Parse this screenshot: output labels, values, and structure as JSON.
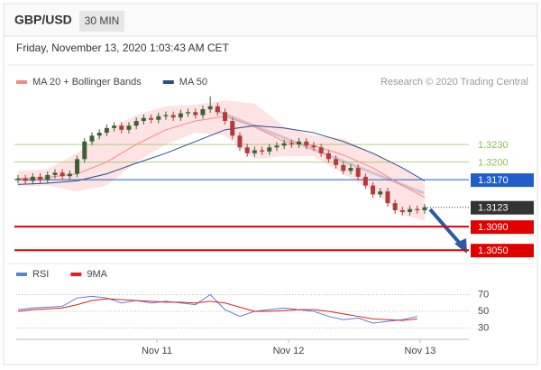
{
  "chart_data": {
    "type": "candlestick",
    "title": "GBP/USD",
    "timeframe": "30 MIN",
    "subtitle": "Friday, November 13, 2020 1:03:43 AM CET",
    "source": "Research © 2020 Trading Central",
    "up_color": "#3f5f36",
    "down_color": "#b23a3a",
    "x": [
      0,
      1,
      2,
      3,
      4,
      5,
      6,
      7,
      8,
      9,
      10,
      11,
      12,
      13,
      14,
      15,
      16,
      17,
      18,
      19,
      20,
      21,
      22,
      23,
      24,
      25,
      26,
      27,
      28,
      29,
      30,
      31,
      32,
      33,
      34,
      35,
      36,
      37,
      38,
      39,
      40,
      41,
      42,
      43,
      44,
      45,
      46,
      47,
      48,
      49,
      50,
      51,
      52,
      53,
      54,
      55
    ],
    "open": [
      1.317,
      1.3172,
      1.3168,
      1.3175,
      1.317,
      1.3178,
      1.3182,
      1.3176,
      1.318,
      1.3205,
      1.3235,
      1.3245,
      1.325,
      1.3258,
      1.3262,
      1.3255,
      1.3262,
      1.327,
      1.3275,
      1.3272,
      1.3278,
      1.328,
      1.3276,
      1.3283,
      1.3285,
      1.328,
      1.329,
      1.3295,
      1.3285,
      1.327,
      1.3245,
      1.3225,
      1.3215,
      1.322,
      1.3218,
      1.3225,
      1.3228,
      1.3232,
      1.323,
      1.3235,
      1.3228,
      1.3225,
      1.3215,
      1.3205,
      1.3195,
      1.3185,
      1.319,
      1.3175,
      1.316,
      1.3145,
      1.315,
      1.313,
      1.3118,
      1.3115,
      1.312,
      1.3118
    ],
    "high": [
      1.3178,
      1.3178,
      1.3181,
      1.3181,
      1.3184,
      1.3188,
      1.3188,
      1.3186,
      1.3211,
      1.3241,
      1.3251,
      1.3256,
      1.3264,
      1.3268,
      1.3268,
      1.3268,
      1.3276,
      1.3281,
      1.3281,
      1.3284,
      1.3286,
      1.3286,
      1.3289,
      1.3291,
      1.3291,
      1.3296,
      1.3312,
      1.3301,
      1.3291,
      1.3276,
      1.3251,
      1.3231,
      1.3226,
      1.3226,
      1.3231,
      1.3234,
      1.3238,
      1.3238,
      1.3241,
      1.3241,
      1.3234,
      1.3231,
      1.3221,
      1.3211,
      1.3201,
      1.3196,
      1.3196,
      1.3181,
      1.3166,
      1.3156,
      1.3156,
      1.3136,
      1.3124,
      1.3126,
      1.3126,
      1.3129
    ],
    "low": [
      1.3164,
      1.3162,
      1.3162,
      1.3164,
      1.3164,
      1.3172,
      1.317,
      1.317,
      1.3174,
      1.3199,
      1.3229,
      1.3239,
      1.3244,
      1.3252,
      1.3249,
      1.3249,
      1.3256,
      1.3264,
      1.3266,
      1.3266,
      1.3272,
      1.327,
      1.327,
      1.3277,
      1.3274,
      1.3274,
      1.3284,
      1.3279,
      1.3264,
      1.3239,
      1.3219,
      1.3209,
      1.3209,
      1.3212,
      1.3212,
      1.3219,
      1.3222,
      1.3224,
      1.3224,
      1.3222,
      1.3219,
      1.3209,
      1.3199,
      1.3189,
      1.3179,
      1.3179,
      1.3169,
      1.3154,
      1.3139,
      1.3139,
      1.3124,
      1.3112,
      1.3109,
      1.3109,
      1.3112,
      1.3112
    ],
    "close": [
      1.3172,
      1.3168,
      1.3175,
      1.317,
      1.3178,
      1.3182,
      1.3176,
      1.318,
      1.3205,
      1.3235,
      1.3245,
      1.325,
      1.3258,
      1.3262,
      1.3255,
      1.3262,
      1.327,
      1.3275,
      1.3272,
      1.3278,
      1.328,
      1.3276,
      1.3283,
      1.3285,
      1.328,
      1.329,
      1.3295,
      1.3285,
      1.327,
      1.3245,
      1.3225,
      1.3215,
      1.322,
      1.3218,
      1.3225,
      1.3228,
      1.3232,
      1.323,
      1.3235,
      1.3228,
      1.3225,
      1.3215,
      1.3205,
      1.3195,
      1.3185,
      1.319,
      1.3175,
      1.316,
      1.3145,
      1.315,
      1.313,
      1.3118,
      1.3115,
      1.312,
      1.3118,
      1.3123
    ],
    "series": [
      {
        "name": "MA 20 + Bollinger Bands",
        "color": "#f28b82",
        "band_color": "#fcdcdc",
        "x": [
          0,
          4,
          8,
          12,
          16,
          20,
          24,
          28,
          32,
          36,
          40,
          44,
          48,
          52,
          55
        ],
        "values": [
          1.3172,
          1.3174,
          1.318,
          1.32,
          1.323,
          1.3255,
          1.327,
          1.3278,
          1.326,
          1.3235,
          1.3228,
          1.3212,
          1.319,
          1.316,
          1.314
        ],
        "upper": [
          1.3185,
          1.3188,
          1.3215,
          1.3255,
          1.328,
          1.3295,
          1.3298,
          1.3305,
          1.33,
          1.326,
          1.3245,
          1.324,
          1.3215,
          1.319,
          1.3165
        ],
        "lower": [
          1.3158,
          1.316,
          1.315,
          1.316,
          1.32,
          1.323,
          1.325,
          1.3245,
          1.3205,
          1.321,
          1.321,
          1.318,
          1.315,
          1.311,
          1.31
        ]
      },
      {
        "name": "MA 50",
        "color": "#2b4c8c",
        "x": [
          0,
          4,
          8,
          12,
          16,
          20,
          24,
          28,
          32,
          36,
          40,
          44,
          48,
          52,
          55
        ],
        "values": [
          1.3162,
          1.3164,
          1.3168,
          1.318,
          1.3198,
          1.3215,
          1.3235,
          1.3255,
          1.3262,
          1.3258,
          1.325,
          1.3235,
          1.3215,
          1.319,
          1.3168
        ]
      }
    ],
    "levels": [
      {
        "value": 1.323,
        "label": "1.3230",
        "color": "#8cc152",
        "line": "thin",
        "box": false
      },
      {
        "value": 1.32,
        "label": "1.3200",
        "color": "#8cc152",
        "line": "thin",
        "box": false
      },
      {
        "value": 1.317,
        "label": "1.3170",
        "color": "#1f5fc9",
        "line": "thin",
        "box": true
      },
      {
        "value": 1.3123,
        "label": "1.3123",
        "color": "#333333",
        "line": "dotted",
        "box": true
      },
      {
        "value": 1.309,
        "label": "1.3090",
        "color": "#e00000",
        "line": "thick",
        "box": true
      },
      {
        "value": 1.305,
        "label": "1.3050",
        "color": "#e00000",
        "line": "thick",
        "box": true
      }
    ],
    "ylim": [
      1.3038,
      1.333
    ],
    "xlim": [
      -0.24,
      60.98
    ],
    "xticks": [
      {
        "value": 18.78,
        "label": "Nov 11"
      },
      {
        "value": 36.59,
        "label": "Nov 12"
      },
      {
        "value": 54.39,
        "label": "Nov 13"
      }
    ],
    "rsi": {
      "ylim": [
        17.6,
        82.4
      ],
      "yticks": [
        70,
        50,
        30
      ],
      "grid": true,
      "series": [
        {
          "name": "RSI",
          "color": "#5b7fd6",
          "x": [
            0,
            2,
            4,
            6,
            8,
            10,
            12,
            14,
            16,
            18,
            20,
            22,
            24,
            26,
            28,
            30,
            32,
            34,
            36,
            38,
            40,
            42,
            44,
            46,
            48,
            50,
            52,
            54
          ],
          "values": [
            52,
            54,
            55,
            56,
            66,
            68,
            66,
            60,
            63,
            60,
            62,
            60,
            58,
            70,
            52,
            44,
            50,
            52,
            54,
            52,
            50,
            44,
            40,
            42,
            36,
            38,
            40,
            44
          ]
        },
        {
          "name": "9MA",
          "color": "#e02020",
          "x": [
            0,
            2,
            4,
            6,
            8,
            10,
            12,
            14,
            16,
            18,
            20,
            22,
            24,
            26,
            28,
            30,
            32,
            34,
            36,
            38,
            40,
            42,
            44,
            46,
            48,
            50,
            52,
            54
          ],
          "values": [
            50,
            52,
            53,
            54,
            58,
            63,
            65,
            64,
            63,
            62,
            61,
            61,
            60,
            62,
            60,
            55,
            50,
            50,
            51,
            52,
            52,
            50,
            47,
            44,
            41,
            40,
            39,
            41
          ]
        }
      ]
    }
  }
}
